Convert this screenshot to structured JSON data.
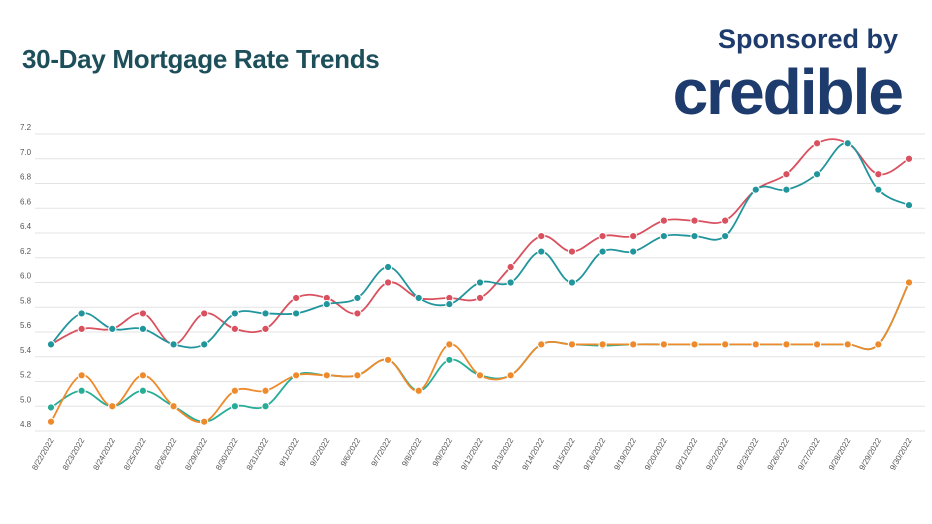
{
  "header": {
    "title": "30-Day Mortgage Rate Trends",
    "sponsor_text": "Sponsored by",
    "logo_text": "credible"
  },
  "colors": {
    "title": "#1d4f5a",
    "logo": "#1d3b6d",
    "grid": "#e3e3e3"
  },
  "chart_data": {
    "type": "line",
    "title": "30-Day Mortgage Rate Trends",
    "xlabel": "",
    "ylabel": "",
    "ylim": [
      4.8,
      7.2
    ],
    "yticks": [
      "4.8",
      "5.0",
      "5.2",
      "5.4",
      "5.6",
      "5.8",
      "6.0",
      "6.2",
      "6.4",
      "6.6",
      "6.8",
      "7.0",
      "7.2"
    ],
    "grid": true,
    "legend": "none",
    "categories": [
      "8/22/2022",
      "8/23/2022",
      "8/24/2022",
      "8/25/2022",
      "8/26/2022",
      "8/29/2022",
      "8/30/2022",
      "8/31/2022",
      "9/1/2022",
      "9/2/2022",
      "9/6/2022",
      "9/7/2022",
      "9/8/2022",
      "9/9/2022",
      "9/12/2022",
      "9/13/2022",
      "9/14/2022",
      "9/15/2022",
      "9/16/2022",
      "9/19/2022",
      "9/20/2022",
      "9/21/2022",
      "9/22/2022",
      "9/23/2022",
      "9/26/2022",
      "9/27/2022",
      "9/28/2022",
      "9/29/2022",
      "9/30/2022"
    ],
    "series": [
      {
        "color": "#d9505f",
        "values": [
          5.5,
          5.625,
          5.625,
          5.75,
          5.5,
          5.75,
          5.625,
          5.625,
          5.875,
          5.875,
          5.75,
          6.0,
          5.875,
          5.875,
          5.875,
          6.125,
          6.375,
          6.25,
          6.375,
          6.375,
          6.5,
          6.5,
          6.5,
          6.75,
          6.875,
          7.125,
          7.125,
          6.875,
          7.0
        ]
      },
      {
        "color": "#21959c",
        "values": [
          5.5,
          5.75,
          5.625,
          5.625,
          5.5,
          5.5,
          5.75,
          5.75,
          5.75,
          5.825,
          5.875,
          6.125,
          5.875,
          5.825,
          6.0,
          6.0,
          6.25,
          6.0,
          6.25,
          6.25,
          6.375,
          6.375,
          6.375,
          6.75,
          6.75,
          6.875,
          7.125,
          6.75,
          6.625
        ]
      },
      {
        "color": "#27ad96",
        "values": [
          4.99,
          5.125,
          5.0,
          5.125,
          5.0,
          4.875,
          5.0,
          5.0,
          5.25,
          5.25,
          5.25,
          5.375,
          5.125,
          5.375,
          5.25,
          5.25,
          5.5,
          5.5,
          5.49,
          5.5,
          5.5,
          5.5,
          5.5,
          5.5,
          5.5,
          5.5,
          5.5,
          5.5,
          6.0
        ]
      },
      {
        "color": "#ee8a2b",
        "values": [
          4.875,
          5.25,
          5.0,
          5.25,
          5.0,
          4.875,
          5.125,
          5.125,
          5.25,
          5.25,
          5.25,
          5.375,
          5.125,
          5.5,
          5.25,
          5.25,
          5.5,
          5.5,
          5.5,
          5.5,
          5.5,
          5.5,
          5.5,
          5.5,
          5.5,
          5.5,
          5.5,
          5.5,
          6.0
        ]
      }
    ]
  }
}
